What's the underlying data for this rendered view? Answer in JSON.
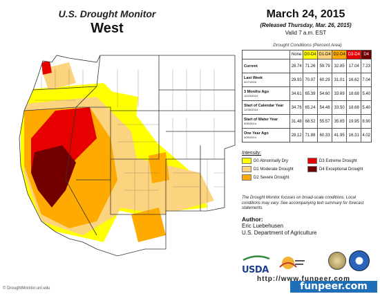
{
  "title": {
    "line1": "U.S. Drought Monitor",
    "region": "West"
  },
  "date_block": {
    "date": "March 24, 2015",
    "released": "(Released Thursday, Mar. 26, 2015)",
    "valid": "Valid 7 a.m. EST"
  },
  "table": {
    "caption": "Drought Conditions (Percent Area)",
    "columns": [
      "None",
      "D0-D4",
      "D1-D4",
      "D2-D4",
      "D3-D4",
      "D4"
    ],
    "column_colors": [
      "#ffffff",
      "#ffff00",
      "#fcd37f",
      "#ffaa00",
      "#e60000",
      "#730000"
    ],
    "rows": [
      {
        "label": "Current",
        "sub": "",
        "values": [
          "28.74",
          "71.26",
          "59.79",
          "32.85",
          "17.04",
          "7.23"
        ]
      },
      {
        "label": "Last Week",
        "sub": "3/17/2015",
        "values": [
          "29.93",
          "70.07",
          "60.29",
          "31.01",
          "16.62",
          "7.04"
        ]
      },
      {
        "label": "3 Months Ago",
        "sub": "12/23/2014",
        "values": [
          "34.61",
          "65.39",
          "54.60",
          "33.69",
          "18.68",
          "5.40"
        ]
      },
      {
        "label": "Start of Calendar Year",
        "sub": "12/30/2014",
        "values": [
          "34.76",
          "65.24",
          "54.48",
          "33.50",
          "18.68",
          "5.40"
        ]
      },
      {
        "label": "Start of Water Year",
        "sub": "9/30/2014",
        "values": [
          "31.48",
          "68.52",
          "55.57",
          "35.65",
          "19.95",
          "8.90"
        ]
      },
      {
        "label": "One Year Ago",
        "sub": "3/25/2014",
        "values": [
          "28.12",
          "71.88",
          "60.33",
          "41.95",
          "16.31",
          "4.02"
        ]
      }
    ]
  },
  "legend": {
    "title": "Intensity:",
    "items": [
      {
        "label": "D0 Abnormally Dry",
        "color": "#ffff00"
      },
      {
        "label": "D3 Extreme Drought",
        "color": "#e60000"
      },
      {
        "label": "D1 Moderate Drought",
        "color": "#fcd37f"
      },
      {
        "label": "D4 Exceptional Drought",
        "color": "#730000"
      },
      {
        "label": "D2 Severe Drought",
        "color": "#ffaa00"
      }
    ]
  },
  "note": "The Drought Monitor focuses on broad-scale conditions. Local conditions may vary. See accompanying text summary for forecast statements.",
  "author": {
    "label": "Author:",
    "name": "Eric Luebehusen",
    "org": "U.S. Department of Agriculture"
  },
  "logos": {
    "usda": "USDA",
    "icons": [
      "usda-logo",
      "nmdc-logo",
      "noaa-seal",
      "doc-seal"
    ]
  },
  "credit": "© DroughtMonitor.unl.edu",
  "watermark": {
    "line1": "http://www.funpeer.com",
    "line2": "funpeer.com"
  }
}
